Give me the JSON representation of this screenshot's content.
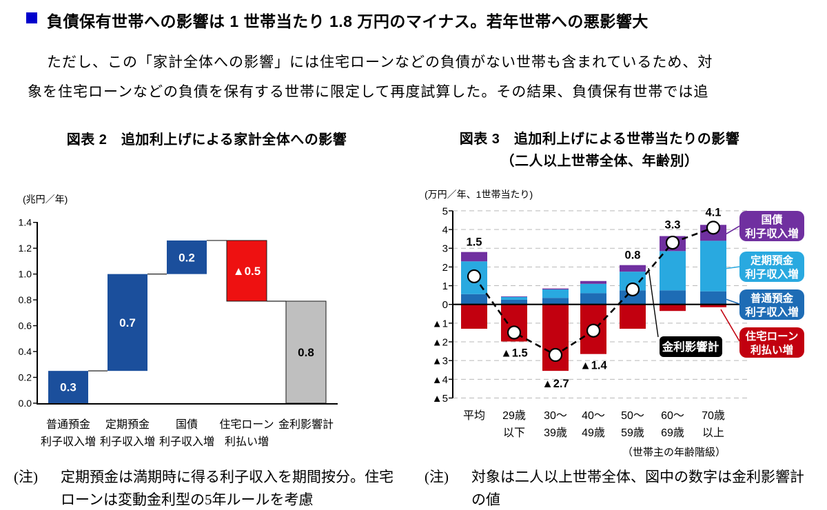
{
  "headline": {
    "bullet_color": "#0000CC",
    "text": "負債保有世帯への影響は 1 世帯当たり 1.8 万円のマイナス。若年世帯への悪影響大"
  },
  "paragraph": {
    "line1": "ただし、この「家計全体への影響」には住宅ローンなどの負債がない世帯も含まれているため、対",
    "line2": "象を住宅ローンなどの負債を保有する世帯に限定して再度試算した。その結果、負債保有世帯では追"
  },
  "fig2": {
    "title": "図表 2　追加利上げによる家計全体への影響",
    "unit": "(兆円／年)",
    "note_label": "(注)",
    "note_line1": "定期預金は満期時に得る利子収入を期間按分。住宅",
    "note_line2": "ローンは変動金利型の5年ルールを考慮"
  },
  "fig3": {
    "title_line1": "図表 3　追加利上げによる世帯当たりの影響",
    "title_line2": "（二人以上世帯全体、年齢別）",
    "unit": "(万円／年、1世帯当たり)",
    "axis_note": "（世帯主の年齢階級）",
    "note_label": "(注)",
    "note_line1": "対象は二人以上世帯全体、図中の数字は金利影響計",
    "note_line2": "の値"
  },
  "chart_data": [
    {
      "id": "fig2",
      "type": "bar",
      "subtype": "waterfall",
      "title": "図表 2　追加利上げによる家計全体への影響",
      "ylabel": "(兆円／年)",
      "ylim": [
        0,
        1.4
      ],
      "yticks": [
        0.0,
        0.2,
        0.4,
        0.6,
        0.8,
        1.0,
        1.2,
        1.4
      ],
      "grid": false,
      "categories": [
        [
          "普通預金",
          "利子収入増"
        ],
        [
          "定期預金",
          "利子収入増"
        ],
        [
          "国債",
          "利子収入増"
        ],
        [
          "住宅ローン",
          "利払い増"
        ],
        [
          "金利影響計",
          ""
        ]
      ],
      "values": [
        0.3,
        0.7,
        0.2,
        -0.5,
        0.8
      ],
      "labels": [
        "0.3",
        "0.7",
        "0.2",
        "▲0.5",
        "0.8"
      ],
      "bar_roles": [
        "increase",
        "increase",
        "increase",
        "decrease",
        "total"
      ],
      "draw_levels": [
        [
          0,
          0.25
        ],
        [
          0.25,
          1.0
        ],
        [
          1.0,
          1.26
        ],
        [
          0.79,
          1.26
        ],
        [
          0,
          0.79
        ]
      ],
      "connector_levels": [
        0.25,
        1.0,
        1.26,
        0.79
      ],
      "colors": {
        "increase": "#1B4F9C",
        "decrease": "#EE1111",
        "total": "#BFBFBF"
      },
      "label_colors": [
        "#ffffff",
        "#ffffff",
        "#ffffff",
        "#ffffff",
        "#000000"
      ]
    },
    {
      "id": "fig3",
      "type": "bar",
      "subtype": "stacked-with-line",
      "title": "図表 3　追加利上げによる世帯当たりの影響（二人以上世帯全体、年齢別）",
      "ylabel": "(万円／年、1世帯当たり)",
      "ylim": [
        -5,
        5
      ],
      "grid": true,
      "categories": [
        [
          "平均",
          ""
        ],
        [
          "29歳",
          "以下"
        ],
        [
          "30～",
          "39歳"
        ],
        [
          "40～",
          "49歳"
        ],
        [
          "50～",
          "59歳"
        ],
        [
          "60～",
          "69歳"
        ],
        [
          "70歳",
          "以上"
        ]
      ],
      "series": [
        {
          "name": "普通預金利子収入増",
          "color": "#1E6CB5",
          "values": [
            0.55,
            0.25,
            0.35,
            0.6,
            0.75,
            0.75,
            0.7
          ]
        },
        {
          "name": "定期預金利子収入増",
          "color": "#29A9E0",
          "values": [
            1.75,
            0.15,
            0.45,
            0.5,
            1.0,
            2.1,
            2.7
          ]
        },
        {
          "name": "国債利子収入増",
          "color": "#7030A0",
          "values": [
            0.5,
            0.03,
            0.05,
            0.15,
            0.35,
            0.8,
            0.85
          ]
        },
        {
          "name": "住宅ローン利払い増",
          "color": "#C2000F",
          "values": [
            -1.3,
            -1.98,
            -3.55,
            -2.65,
            -1.3,
            -0.35,
            -0.15
          ]
        }
      ],
      "line": {
        "name": "金利影響計",
        "values": [
          1.5,
          -1.5,
          -2.7,
          -1.4,
          0.8,
          3.3,
          4.1
        ],
        "labels": [
          "1.5",
          "▲1.5",
          "▲2.7",
          "▲1.4",
          "0.8",
          "3.3",
          "4.1"
        ]
      },
      "legend": [
        {
          "color": "#7030A0",
          "lines": [
            "国債",
            "利子収入増"
          ]
        },
        {
          "color": "#29A9E0",
          "lines": [
            "定期預金",
            "利子収入増"
          ]
        },
        {
          "color": "#1E6CB5",
          "lines": [
            "普通預金",
            "利子収入増"
          ]
        },
        {
          "color": "#C2000F",
          "lines": [
            "住宅ローン",
            "利払い増"
          ]
        }
      ],
      "legend_position": "right"
    }
  ]
}
